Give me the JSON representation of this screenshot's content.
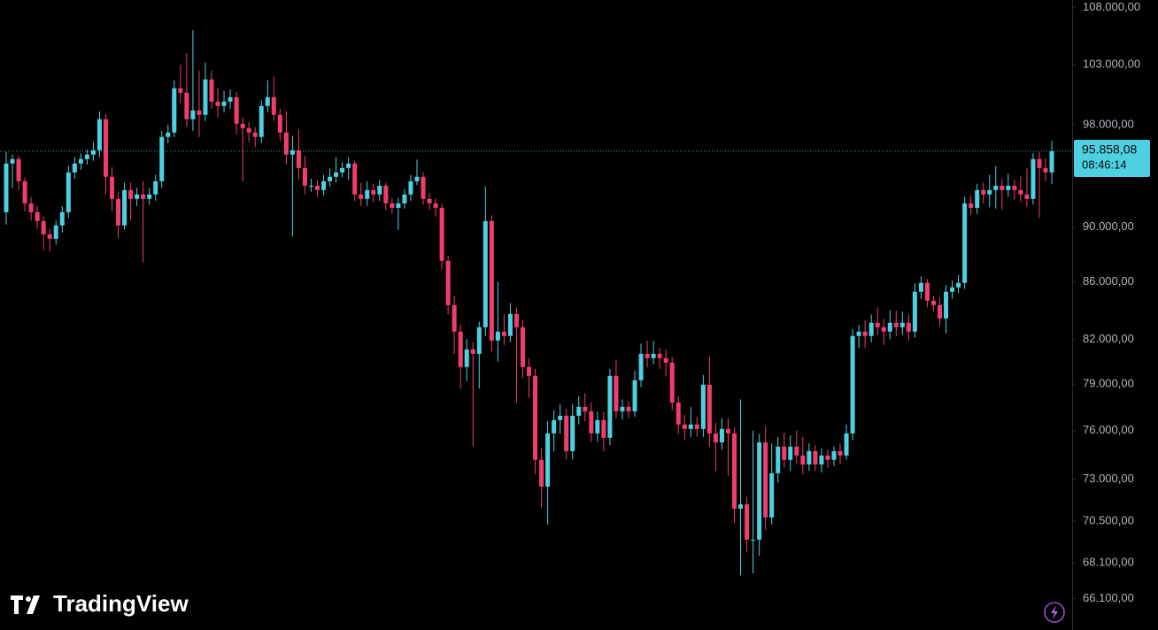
{
  "chart_data": {
    "type": "candlestick",
    "log_scale": true,
    "up_color": "#4dd0e1",
    "down_color": "#f23c6e",
    "ylim": [
      64400,
      108700
    ],
    "yticks": [
      {
        "value": 108000,
        "label": "108.000,00"
      },
      {
        "value": 103000,
        "label": "103.000,00"
      },
      {
        "value": 98000,
        "label": "98.000,00"
      },
      {
        "value": 90000,
        "label": "90.000,00"
      },
      {
        "value": 86000,
        "label": "86.000,00"
      },
      {
        "value": 82000,
        "label": "82.000,00"
      },
      {
        "value": 79000,
        "label": "79.000,00"
      },
      {
        "value": 76000,
        "label": "76.000,00"
      },
      {
        "value": 73000,
        "label": "73.000,00"
      },
      {
        "value": 70500,
        "label": "70.500,00"
      },
      {
        "value": 68100,
        "label": "68.100,00"
      },
      {
        "value": 66100,
        "label": "66.100,00"
      }
    ],
    "last_price": {
      "value": 95858.08,
      "label": "95.858,08"
    },
    "countdown": "08:46:14",
    "brand": "TradingView",
    "open": [
      91130,
      94890,
      95240,
      93500,
      91800,
      91130,
      90460,
      89470,
      89140,
      90130,
      91130,
      94190,
      94890,
      95240,
      95590,
      95940,
      98450,
      93850,
      92140,
      90130,
      92820,
      92140,
      92480,
      92140,
      92480,
      93500,
      97010,
      97370,
      101010,
      100640,
      98450,
      99170,
      98810,
      101760,
      99900,
      99540,
      99900,
      100270,
      98080,
      97720,
      97370,
      97010,
      99540,
      100270,
      98810,
      97370,
      95590,
      95940,
      94540,
      93160,
      93160,
      92820,
      93500,
      93850,
      94190,
      94540,
      94890,
      92480,
      92140,
      92820,
      92480,
      93160,
      91800,
      91460,
      91800,
      92480,
      93500,
      93850,
      92140,
      91800,
      91460,
      87520,
      84360,
      82520,
      80130,
      81310,
      81010,
      82820,
      90460,
      81910,
      82520,
      82220,
      83740,
      82820,
      80130,
      79540,
      74180,
      72550,
      75830,
      76670,
      76950,
      74720,
      76950,
      77520,
      77230,
      75830,
      76670,
      75550,
      79540,
      77230,
      77520,
      77230,
      79250,
      81010,
      80720,
      81010,
      80720,
      80420,
      77800,
      76390,
      76110,
      76390,
      76110,
      78960,
      75830,
      75270,
      76110,
      75830,
      71230,
      71490,
      69420,
      69420,
      75270,
      70710,
      73360,
      75000,
      74180,
      75000,
      74450,
      73900,
      74720,
      73900,
      74450,
      74180,
      74720,
      74450,
      75830,
      82220,
      82520,
      82220,
      83130,
      82820,
      82520,
      83130,
      82820,
      83130,
      82520,
      85300,
      85930,
      84670,
      84360,
      83430,
      85300,
      85610,
      85930,
      91800,
      91460,
      92820,
      92480,
      92820,
      93160,
      92820,
      93160,
      92820,
      92480,
      92140,
      95240,
      94540,
      94190
    ],
    "high": [
      95800,
      95600,
      95500,
      93800,
      92300,
      91600,
      90800,
      89900,
      90500,
      91600,
      94700,
      95400,
      95700,
      96000,
      96600,
      99100,
      98900,
      94600,
      92700,
      93400,
      93400,
      93000,
      93500,
      93000,
      94000,
      97500,
      98000,
      101700,
      103000,
      104000,
      106000,
      102500,
      103200,
      102500,
      101000,
      100800,
      100900,
      100700,
      98600,
      98200,
      97800,
      100000,
      101700,
      102000,
      99300,
      99100,
      97100,
      97600,
      95500,
      93700,
      93600,
      94000,
      94500,
      95400,
      95000,
      95400,
      95100,
      93400,
      93500,
      93300,
      93600,
      93400,
      92200,
      92200,
      92900,
      94000,
      95200,
      94200,
      92600,
      92200,
      91800,
      87900,
      85000,
      83000,
      82000,
      81800,
      83200,
      93100,
      90900,
      86000,
      83700,
      84500,
      84200,
      83300,
      80700,
      80000,
      74900,
      76600,
      77300,
      77700,
      77400,
      77700,
      78200,
      78400,
      77800,
      77200,
      77200,
      80000,
      80600,
      78000,
      77900,
      79900,
      81700,
      81900,
      81900,
      81400,
      81300,
      80800,
      78200,
      77000,
      77500,
      76900,
      79600,
      80800,
      76500,
      76800,
      76800,
      76200,
      78000,
      71900,
      76000,
      75800,
      76300,
      75200,
      75600,
      75900,
      75700,
      76000,
      75600,
      75200,
      75100,
      74900,
      74800,
      75000,
      75200,
      76400,
      82700,
      83000,
      83300,
      83700,
      84200,
      83400,
      84000,
      84000,
      83900,
      83700,
      85900,
      86400,
      86200,
      85000,
      84900,
      85800,
      86100,
      86500,
      92300,
      92400,
      93300,
      93400,
      94000,
      94700,
      93700,
      94100,
      93600,
      93900,
      94500,
      95700,
      95800,
      95300,
      96700
    ],
    "low": [
      90200,
      93000,
      92800,
      91200,
      90500,
      89900,
      88300,
      88200,
      88700,
      89600,
      90700,
      93700,
      94400,
      94800,
      95100,
      95400,
      92500,
      91200,
      89200,
      89800,
      90500,
      91600,
      87400,
      91700,
      92000,
      93000,
      96500,
      97000,
      99800,
      97800,
      97500,
      97000,
      98300,
      99300,
      98600,
      99000,
      99300,
      97200,
      93500,
      96600,
      96200,
      96500,
      99000,
      98300,
      96700,
      94800,
      89300,
      93600,
      92500,
      92700,
      92300,
      92400,
      93100,
      93400,
      93800,
      93600,
      92000,
      91600,
      91600,
      91900,
      92000,
      91300,
      91000,
      89800,
      91400,
      92000,
      93200,
      91700,
      91300,
      90800,
      86900,
      83700,
      81000,
      78700,
      79200,
      75000,
      78700,
      82200,
      81200,
      80500,
      81600,
      81800,
      77800,
      79400,
      78100,
      73300,
      71300,
      70300,
      74700,
      75800,
      74200,
      74200,
      76400,
      76600,
      75300,
      75300,
      74700,
      75100,
      76800,
      76700,
      76800,
      76900,
      78800,
      80100,
      80300,
      80000,
      79500,
      77300,
      75800,
      75400,
      75600,
      75600,
      75600,
      75000,
      73500,
      74800,
      73200,
      70400,
      67400,
      68700,
      67500,
      68500,
      70000,
      70300,
      72800,
      73700,
      73500,
      73900,
      73300,
      73500,
      73500,
      73400,
      73700,
      73800,
      73900,
      74200,
      75400,
      81400,
      81400,
      81800,
      82300,
      81600,
      82000,
      82200,
      82300,
      81900,
      82100,
      84800,
      84200,
      83900,
      82900,
      82400,
      84800,
      85200,
      85500,
      90900,
      91000,
      91800,
      91500,
      91400,
      91300,
      92300,
      92100,
      91900,
      91500,
      91700,
      90700,
      93500,
      93300
    ],
    "close": [
      94890,
      95240,
      93500,
      91800,
      91130,
      90460,
      89470,
      89140,
      90130,
      91130,
      94190,
      94890,
      95240,
      95590,
      95940,
      98450,
      93850,
      92140,
      90130,
      92820,
      92140,
      92480,
      92140,
      92480,
      93500,
      97010,
      97370,
      101010,
      100640,
      98450,
      99170,
      98810,
      101760,
      99900,
      99540,
      99900,
      100270,
      98080,
      97720,
      97370,
      97010,
      99540,
      100270,
      98810,
      97370,
      95590,
      95940,
      94540,
      93160,
      93160,
      92820,
      93500,
      93850,
      94190,
      94540,
      94890,
      92480,
      92140,
      92820,
      92480,
      93160,
      91800,
      91460,
      91800,
      92480,
      93500,
      93850,
      92140,
      91800,
      91460,
      87520,
      84360,
      82520,
      80130,
      81310,
      81010,
      82820,
      90460,
      81910,
      82520,
      82220,
      83740,
      82820,
      80130,
      79540,
      74180,
      72550,
      75830,
      76670,
      76950,
      74720,
      76950,
      77520,
      77230,
      75830,
      76670,
      75550,
      79540,
      77230,
      77520,
      77230,
      79250,
      81010,
      80720,
      81010,
      80720,
      80420,
      77800,
      76390,
      76110,
      76390,
      76110,
      78960,
      75830,
      75270,
      76110,
      75830,
      71230,
      71490,
      69420,
      69420,
      75270,
      70710,
      73360,
      75000,
      74180,
      75000,
      74450,
      73900,
      74720,
      73900,
      74450,
      74180,
      74720,
      74450,
      75830,
      82220,
      82520,
      82220,
      83130,
      82820,
      82520,
      83130,
      82820,
      83130,
      82520,
      85300,
      85930,
      84670,
      84360,
      83430,
      85300,
      85610,
      85930,
      91800,
      91460,
      92820,
      92480,
      92820,
      93160,
      92820,
      93160,
      92820,
      92480,
      92140,
      95240,
      94540,
      94190,
      95858.08
    ]
  }
}
